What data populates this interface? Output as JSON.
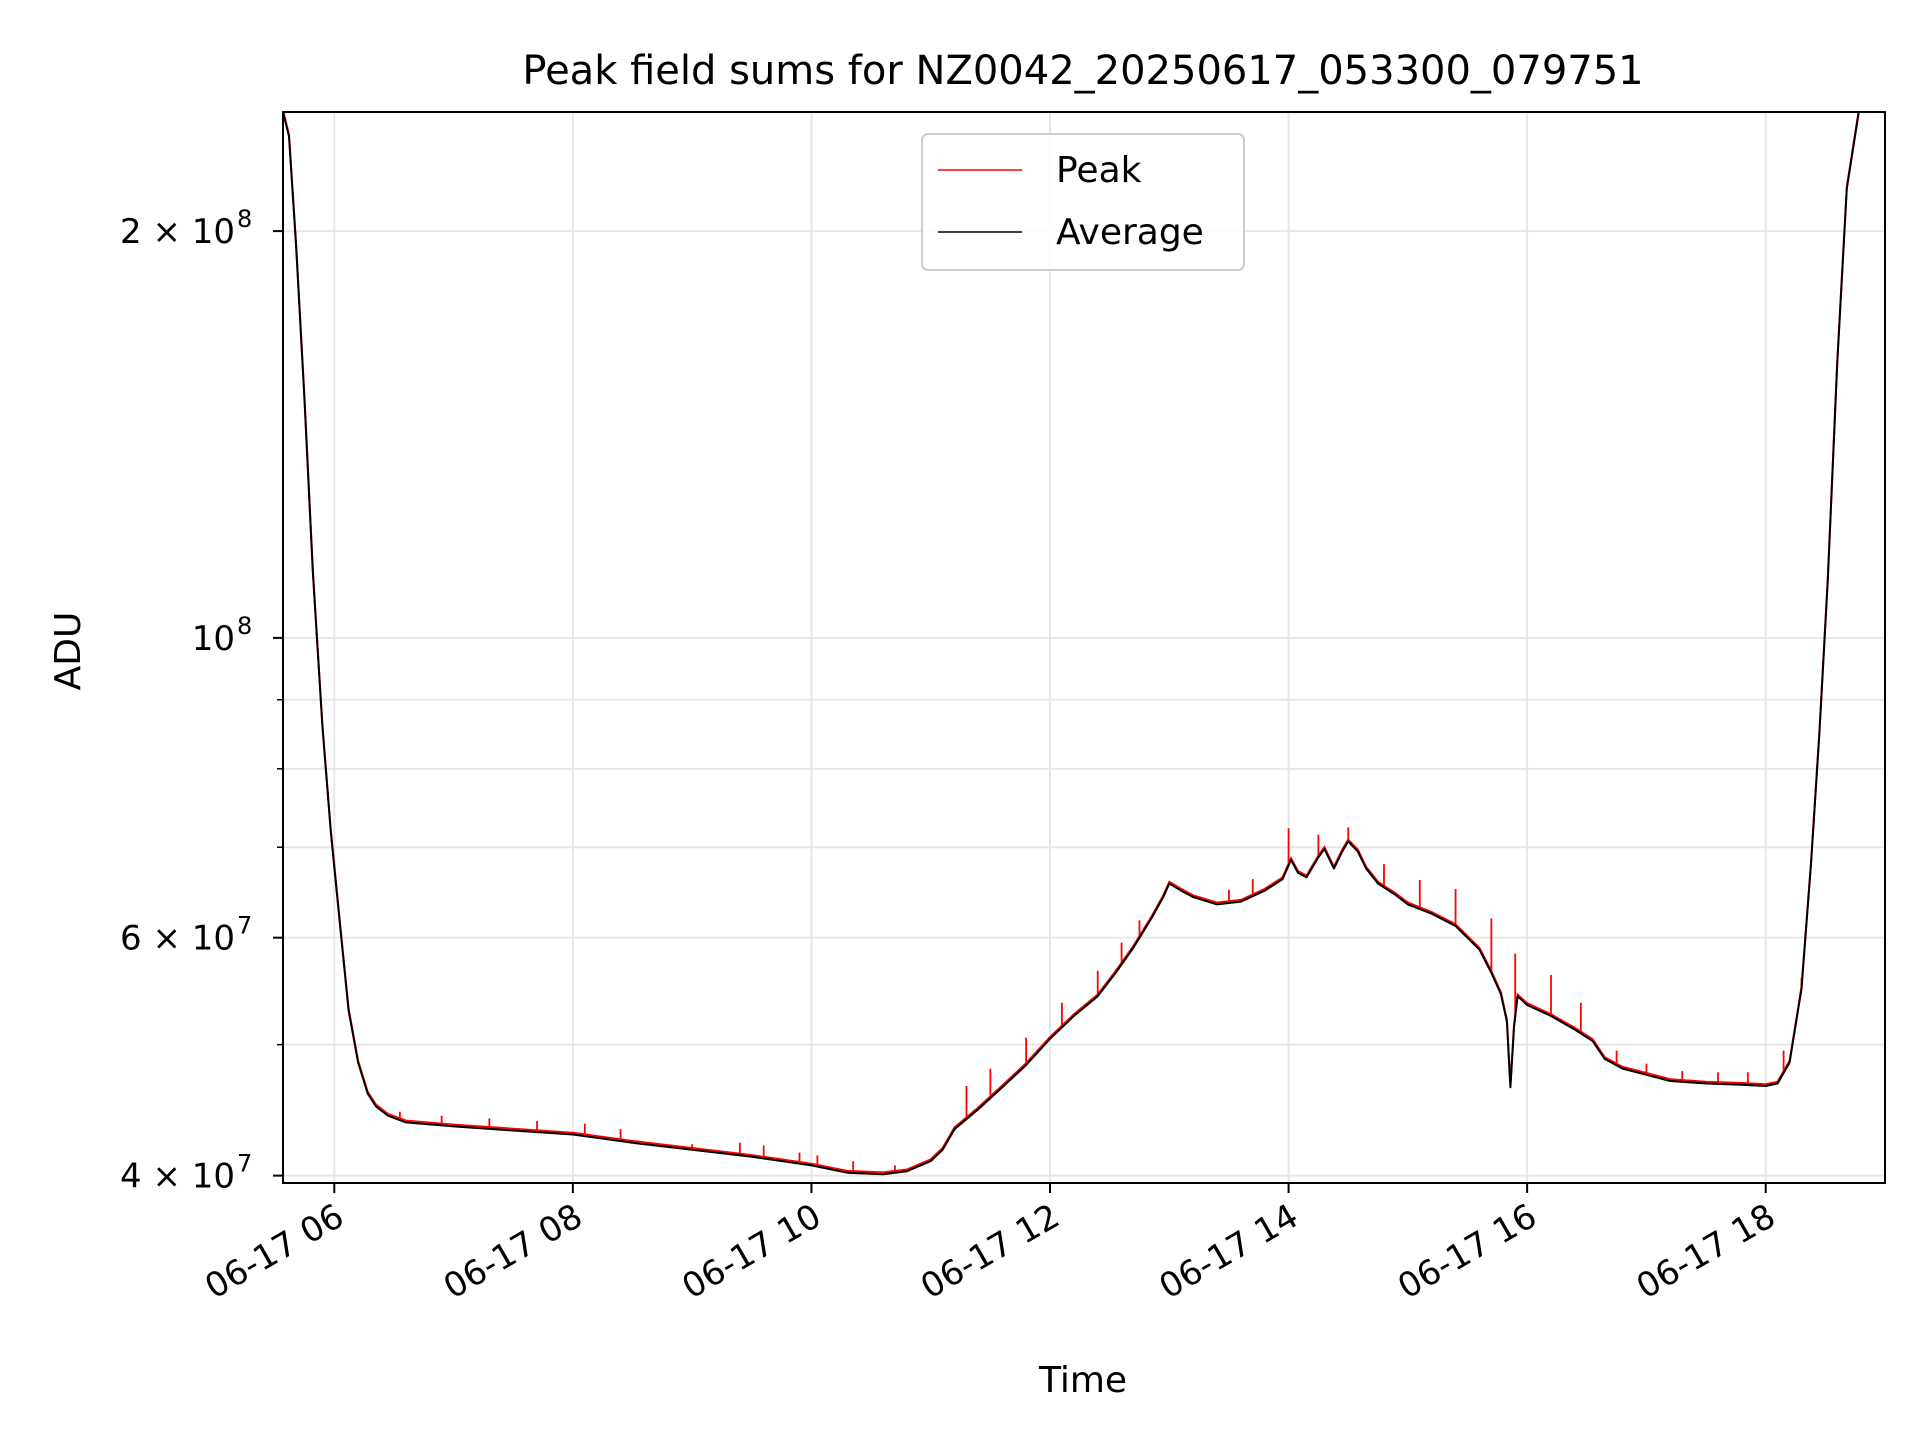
{
  "chart_data": {
    "type": "line",
    "title": "Peak field sums for NZ0042_20250617_053300_079751",
    "xlabel": "Time",
    "ylabel": "ADU",
    "xlim_hours": [
      5.57,
      19.0
    ],
    "ylim": [
      39500000,
      245000000
    ],
    "yscale": "log",
    "grid": true,
    "legend_position": "upper center",
    "x_ticks": [
      {
        "hour": 6,
        "label": "06-17 06"
      },
      {
        "hour": 8,
        "label": "06-17 08"
      },
      {
        "hour": 10,
        "label": "06-17 10"
      },
      {
        "hour": 12,
        "label": "06-17 12"
      },
      {
        "hour": 14,
        "label": "06-17 14"
      },
      {
        "hour": 16,
        "label": "06-17 16"
      },
      {
        "hour": 18,
        "label": "06-17 18"
      }
    ],
    "y_major_ticks": [
      {
        "value": 40000000,
        "mantissa": "4 × 10",
        "exp": "7"
      },
      {
        "value": 60000000,
        "mantissa": "6 × 10",
        "exp": "7"
      },
      {
        "value": 100000000,
        "mantissa": "10",
        "exp": "8"
      },
      {
        "value": 200000000,
        "mantissa": "2 × 10",
        "exp": "8"
      }
    ],
    "y_minor_ticks": [
      50000000,
      70000000,
      80000000,
      90000000
    ],
    "series": [
      {
        "name": "Peak",
        "color": "#ff0000",
        "spikes": [
          [
            6.55,
            44600000
          ],
          [
            6.9,
            44300000
          ],
          [
            7.3,
            44100000
          ],
          [
            7.7,
            43900000
          ],
          [
            8.1,
            43700000
          ],
          [
            8.4,
            43300000
          ],
          [
            9.0,
            42200000
          ],
          [
            9.4,
            42300000
          ],
          [
            9.6,
            42100000
          ],
          [
            9.9,
            41600000
          ],
          [
            10.05,
            41400000
          ],
          [
            10.35,
            41000000
          ],
          [
            10.7,
            40700000
          ],
          [
            11.3,
            46600000
          ],
          [
            11.5,
            48000000
          ],
          [
            11.8,
            50600000
          ],
          [
            12.1,
            53700000
          ],
          [
            12.4,
            56700000
          ],
          [
            12.6,
            59500000
          ],
          [
            12.75,
            61800000
          ],
          [
            13.2,
            64300000
          ],
          [
            13.5,
            65100000
          ],
          [
            13.7,
            66300000
          ],
          [
            14.0,
            72300000
          ],
          [
            14.25,
            71500000
          ],
          [
            14.5,
            72400000
          ],
          [
            14.8,
            68000000
          ],
          [
            15.1,
            66200000
          ],
          [
            15.4,
            65200000
          ],
          [
            15.7,
            62000000
          ],
          [
            15.9,
            58400000
          ],
          [
            16.2,
            56300000
          ],
          [
            16.45,
            53700000
          ],
          [
            16.75,
            49500000
          ],
          [
            17.0,
            48400000
          ],
          [
            17.3,
            47800000
          ],
          [
            17.6,
            47700000
          ],
          [
            17.85,
            47700000
          ],
          [
            18.15,
            49500000
          ],
          [
            18.3,
            56000000
          ]
        ]
      },
      {
        "name": "Average",
        "color": "#000000",
        "points": [
          [
            5.57,
            245000000
          ],
          [
            5.62,
            235000000
          ],
          [
            5.68,
            195000000
          ],
          [
            5.75,
            150000000
          ],
          [
            5.82,
            112000000
          ],
          [
            5.9,
            86000000
          ],
          [
            5.97,
            72000000
          ],
          [
            6.05,
            61000000
          ],
          [
            6.12,
            53000000
          ],
          [
            6.2,
            48500000
          ],
          [
            6.28,
            46000000
          ],
          [
            6.35,
            45000000
          ],
          [
            6.45,
            44300000
          ],
          [
            6.6,
            43800000
          ],
          [
            7.0,
            43500000
          ],
          [
            7.5,
            43200000
          ],
          [
            8.0,
            42900000
          ],
          [
            8.5,
            42300000
          ],
          [
            9.0,
            41800000
          ],
          [
            9.5,
            41300000
          ],
          [
            10.0,
            40700000
          ],
          [
            10.3,
            40200000
          ],
          [
            10.6,
            40100000
          ],
          [
            10.8,
            40300000
          ],
          [
            11.0,
            41000000
          ],
          [
            11.1,
            41800000
          ],
          [
            11.2,
            43300000
          ],
          [
            11.4,
            44800000
          ],
          [
            11.6,
            46500000
          ],
          [
            11.8,
            48300000
          ],
          [
            12.0,
            50500000
          ],
          [
            12.2,
            52500000
          ],
          [
            12.4,
            54300000
          ],
          [
            12.55,
            56500000
          ],
          [
            12.7,
            59000000
          ],
          [
            12.85,
            62000000
          ],
          [
            12.95,
            64300000
          ],
          [
            13.0,
            65800000
          ],
          [
            13.1,
            65000000
          ],
          [
            13.2,
            64300000
          ],
          [
            13.4,
            63500000
          ],
          [
            13.6,
            63800000
          ],
          [
            13.8,
            65000000
          ],
          [
            13.95,
            66300000
          ],
          [
            14.02,
            68500000
          ],
          [
            14.08,
            67000000
          ],
          [
            14.15,
            66500000
          ],
          [
            14.25,
            68800000
          ],
          [
            14.3,
            69800000
          ],
          [
            14.38,
            67500000
          ],
          [
            14.45,
            69500000
          ],
          [
            14.5,
            70700000
          ],
          [
            14.58,
            69500000
          ],
          [
            14.65,
            67500000
          ],
          [
            14.75,
            65800000
          ],
          [
            14.9,
            64500000
          ],
          [
            15.0,
            63500000
          ],
          [
            15.2,
            62500000
          ],
          [
            15.4,
            61200000
          ],
          [
            15.6,
            58800000
          ],
          [
            15.7,
            56500000
          ],
          [
            15.78,
            54500000
          ],
          [
            15.83,
            52000000
          ],
          [
            15.86,
            46500000
          ],
          [
            15.89,
            51500000
          ],
          [
            15.92,
            54300000
          ],
          [
            16.0,
            53500000
          ],
          [
            16.2,
            52500000
          ],
          [
            16.4,
            51300000
          ],
          [
            16.55,
            50300000
          ],
          [
            16.65,
            48800000
          ],
          [
            16.8,
            48000000
          ],
          [
            17.0,
            47500000
          ],
          [
            17.2,
            47000000
          ],
          [
            17.5,
            46800000
          ],
          [
            17.8,
            46700000
          ],
          [
            18.0,
            46600000
          ],
          [
            18.1,
            46800000
          ],
          [
            18.2,
            48500000
          ],
          [
            18.3,
            55000000
          ],
          [
            18.38,
            68000000
          ],
          [
            18.45,
            85000000
          ],
          [
            18.52,
            110000000
          ],
          [
            18.6,
            160000000
          ],
          [
            18.68,
            215000000
          ],
          [
            18.78,
            245000000
          ],
          [
            19.0,
            245000000
          ]
        ]
      }
    ]
  }
}
